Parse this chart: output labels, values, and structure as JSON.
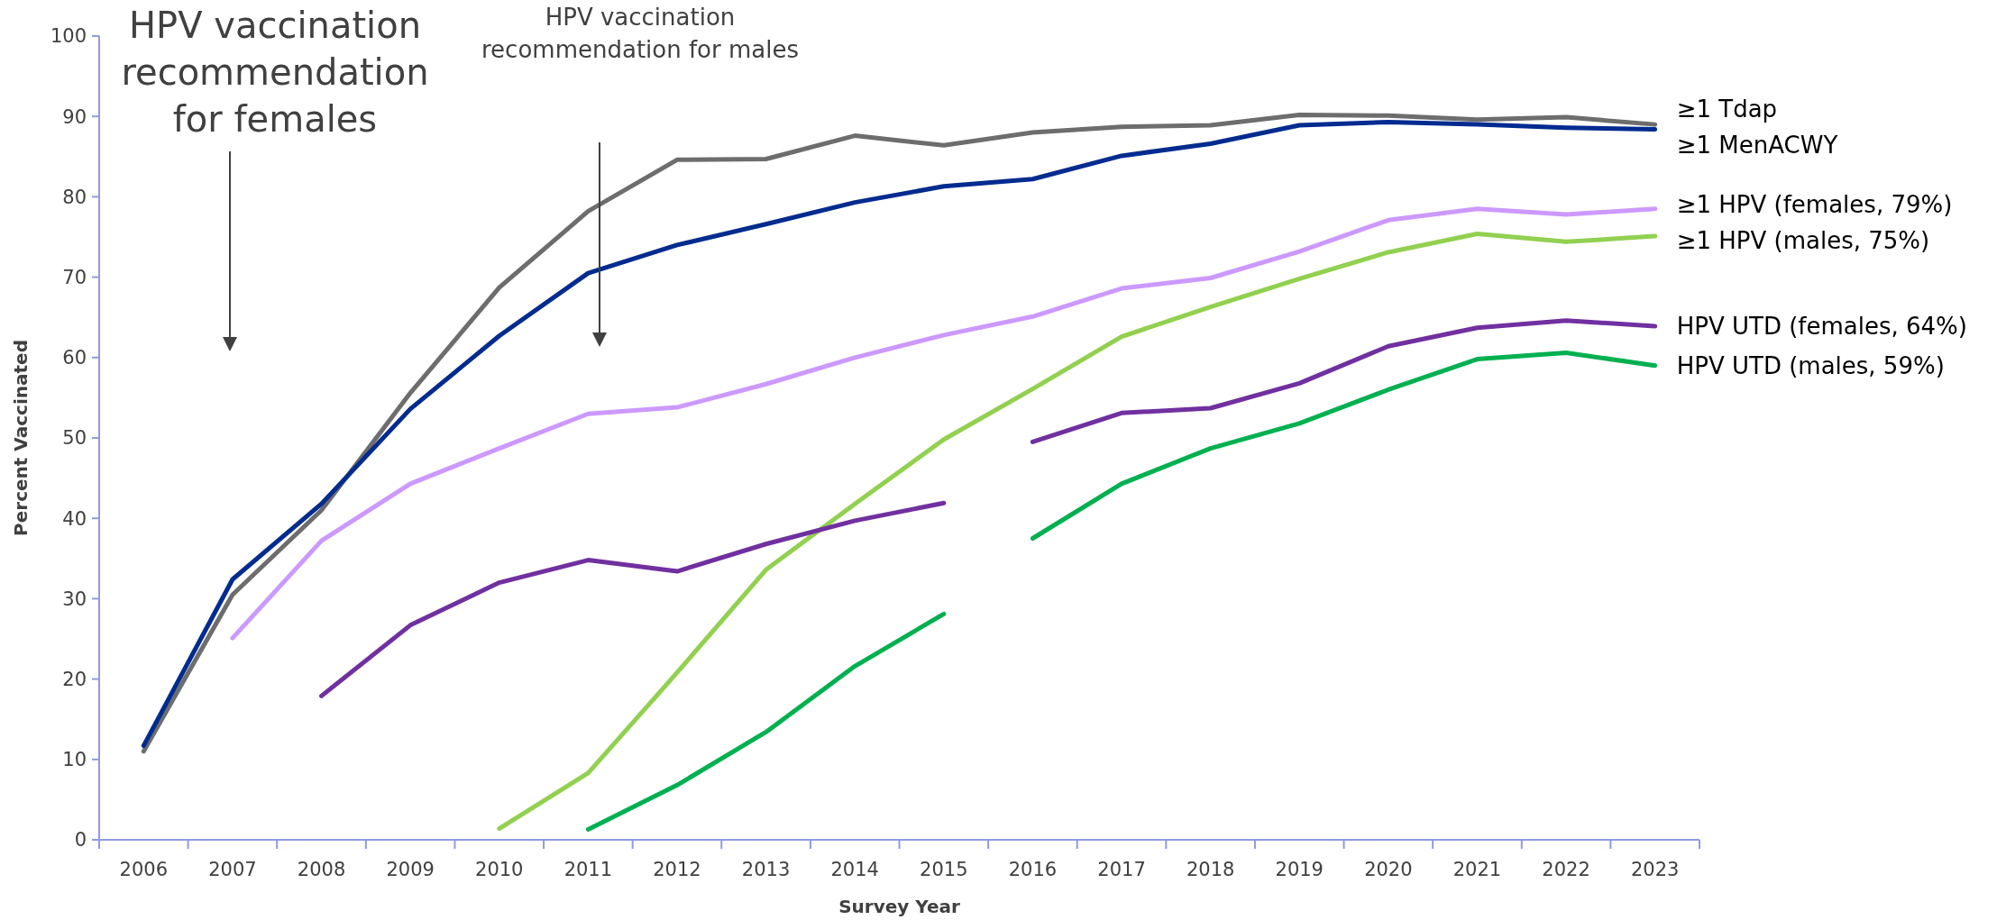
{
  "chart_data": {
    "type": "line",
    "xlabel": "Survey Year",
    "ylabel": "Percent Vaccinated",
    "categories": [
      "2006",
      "2007",
      "2008",
      "2009",
      "2010",
      "2011",
      "2012",
      "2013",
      "2014",
      "2015",
      "2016",
      "2017",
      "2018",
      "2019",
      "2020",
      "2021",
      "2022",
      "2023"
    ],
    "ylim": [
      0,
      100
    ],
    "yticks": [
      0,
      10,
      20,
      30,
      40,
      50,
      60,
      70,
      80,
      90,
      100
    ],
    "legend": false,
    "series": [
      {
        "name": "≥1 Tdap",
        "color": "#6d6d6d",
        "values": [
          11,
          30.5,
          41,
          55.6,
          68.7,
          78.2,
          84.6,
          84.7,
          87.6,
          86.4,
          88,
          88.7,
          88.9,
          90.2,
          90.1,
          89.6,
          89.9,
          89
        ]
      },
      {
        "name": "≥1 MenACWY",
        "color": "#002b8f",
        "values": [
          11.7,
          32.4,
          41.8,
          53.6,
          62.7,
          70.5,
          74,
          76.6,
          79.3,
          81.3,
          82.2,
          85.1,
          86.6,
          88.9,
          89.3,
          89,
          88.6,
          88.4
        ]
      },
      {
        "name": "≥1 HPV (females, 79%)",
        "color": "#cc99ff",
        "values": [
          null,
          25.1,
          37.2,
          44.3,
          48.7,
          53,
          53.8,
          56.7,
          60,
          62.8,
          65.1,
          68.6,
          69.9,
          73.2,
          77.1,
          78.5,
          77.8,
          78.5
        ]
      },
      {
        "name": "≥1 HPV (males, 75%)",
        "color": "#92d050",
        "values": [
          null,
          null,
          null,
          null,
          1.4,
          8.3,
          20.8,
          33.6,
          41.8,
          49.8,
          56.1,
          62.6,
          66.3,
          69.8,
          73.1,
          75.4,
          74.4,
          75.1
        ]
      },
      {
        "color": "#7030a0",
        "values": [
          null,
          null,
          17.9,
          26.7,
          32,
          34.8,
          33.4,
          36.8,
          39.7,
          41.9,
          null,
          null,
          null,
          null,
          null,
          null,
          null,
          null
        ]
      },
      {
        "name": "HPV UTD (females, 64%)",
        "color": "#7030a0",
        "values": [
          null,
          null,
          null,
          null,
          null,
          null,
          null,
          null,
          null,
          null,
          49.5,
          53.1,
          53.7,
          56.8,
          61.4,
          63.7,
          64.6,
          63.9
        ]
      },
      {
        "color": "#00b050",
        "values": [
          null,
          null,
          null,
          null,
          null,
          1.3,
          6.8,
          13.4,
          21.6,
          28.1,
          null,
          null,
          null,
          null,
          null,
          null,
          null,
          null
        ]
      },
      {
        "name": "HPV UTD (males, 59%)",
        "color": "#00b050",
        "values": [
          null,
          null,
          null,
          null,
          null,
          null,
          null,
          null,
          null,
          null,
          37.5,
          44.3,
          48.7,
          51.8,
          56,
          59.8,
          60.6,
          59
        ]
      }
    ],
    "annotations": [
      "HPV vaccination\nrecommendation\nfor females",
      "HPV vaccination\nrecommendation for males"
    ]
  }
}
